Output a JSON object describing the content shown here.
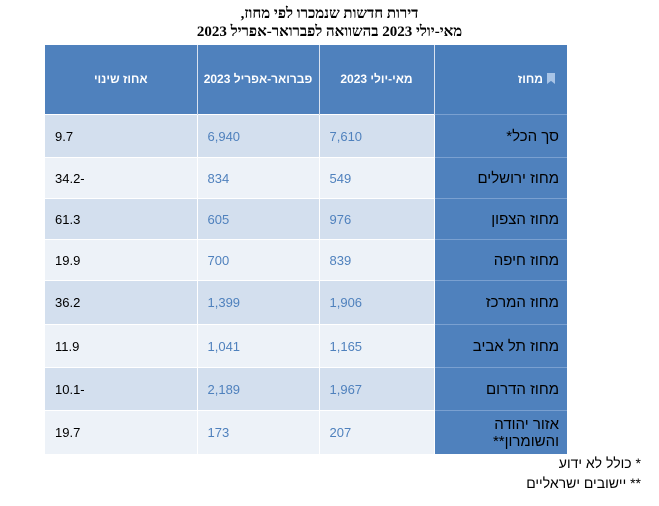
{
  "chart_data": {
    "type": "table",
    "title": "דירות חדשות שנמכרו לפי מחוז,",
    "subtitle": "מאי-יולי 2023 בהשוואה לפברואר-אפריל 2023",
    "columns": {
      "district": "מחוז",
      "may_jul": "מאי-יולי 2023",
      "feb_apr": "פברואר-אפריל 2023",
      "change": "אחוז שינוי"
    },
    "rows": [
      {
        "district": "סך הכל*",
        "may_jul": "7,610",
        "feb_apr": "6,940",
        "change": "9.7"
      },
      {
        "district": "מחוז ירושלים",
        "may_jul": "549",
        "feb_apr": "834",
        "change": "34.2-"
      },
      {
        "district": "מחוז הצפון",
        "may_jul": "976",
        "feb_apr": "605",
        "change": "61.3"
      },
      {
        "district": "מחוז חיפה",
        "may_jul": "839",
        "feb_apr": "700",
        "change": "19.9"
      },
      {
        "district": "מחוז המרכז",
        "may_jul": "1,906",
        "feb_apr": "1,399",
        "change": "36.2"
      },
      {
        "district": "מחוז תל אביב",
        "may_jul": "1,165",
        "feb_apr": "1,041",
        "change": "11.9"
      },
      {
        "district": "מחוז הדרום",
        "may_jul": "1,967",
        "feb_apr": "2,189",
        "change": "10.1-"
      },
      {
        "district": "אזור יהודה והשומרון**",
        "may_jul": "207",
        "feb_apr": "173",
        "change": "19.7"
      }
    ]
  },
  "notes": {
    "note1": "* כולל לא ידוע",
    "note2": "** יישובים ישראליים"
  },
  "colors": {
    "header": "#4f81bd",
    "row_odd": "#d3dfee",
    "row_even": "#edf2f8",
    "value_text": "#4f81bd"
  }
}
